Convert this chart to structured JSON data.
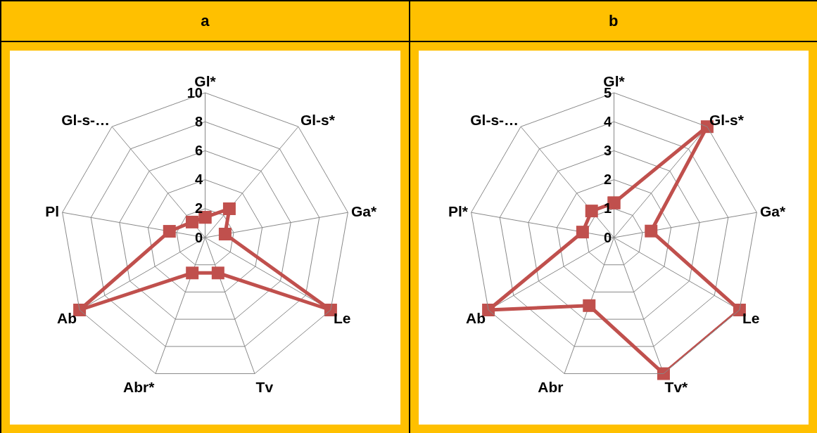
{
  "chart_data": [
    {
      "type": "radar",
      "title": "a",
      "categories": [
        "Gl*",
        "Gl-s*",
        "Ga*",
        "Le",
        "Tv",
        "Abr*",
        "Ab",
        "Pl",
        "Gl-s-…"
      ],
      "series": [
        {
          "color": "#c0504d",
          "values": [
            1.4,
            2.6,
            1.4,
            10,
            2.6,
            2.6,
            10,
            2.5,
            1.4
          ]
        }
      ],
      "ylim": [
        0,
        10
      ],
      "yticks": [
        0,
        2,
        4,
        6,
        8,
        10
      ],
      "grid": true,
      "marker": "square"
    },
    {
      "type": "radar",
      "title": "b",
      "categories": [
        "Gl*",
        "Gl-s*",
        "Ga*",
        "Le",
        "Tv*",
        "Abr",
        "Ab",
        "Pl*",
        "Gl-s-…"
      ],
      "series": [
        {
          "color": "#c0504d",
          "values": [
            1.2,
            5,
            1.3,
            5,
            5,
            2.5,
            5,
            1.1,
            1.2
          ]
        }
      ],
      "ylim": [
        0,
        5
      ],
      "yticks": [
        0,
        1,
        2,
        3,
        4,
        5
      ],
      "grid": true,
      "marker": "square"
    }
  ]
}
